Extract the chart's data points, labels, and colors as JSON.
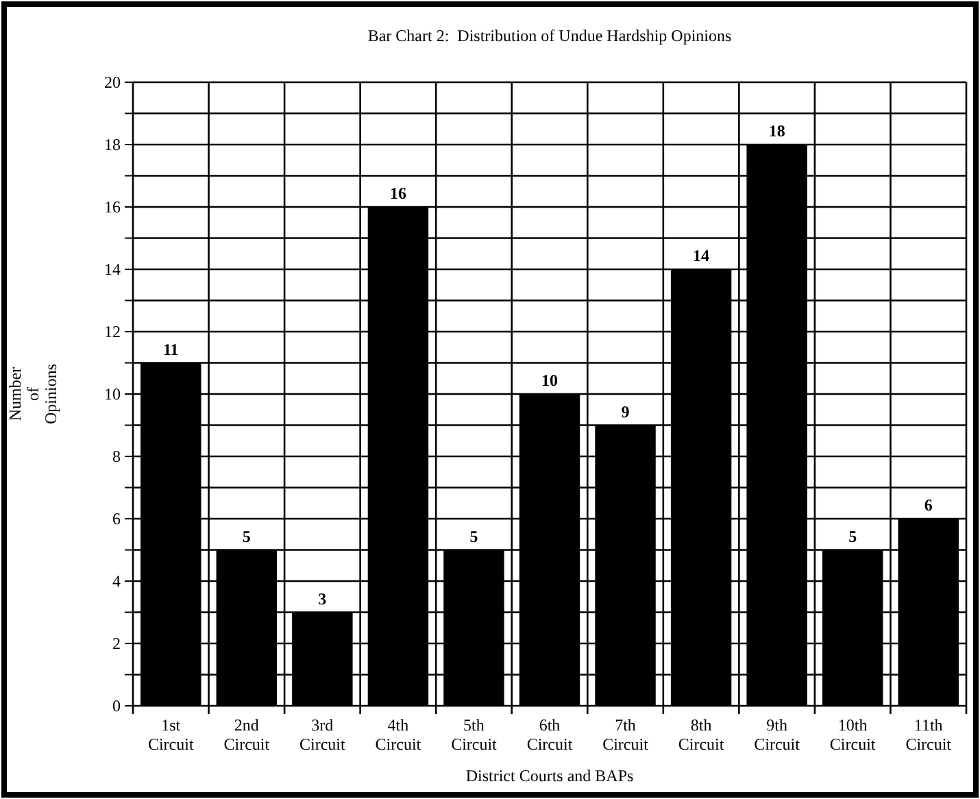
{
  "chart_data": {
    "type": "bar",
    "title": "Bar Chart 2:  Distribution of Undue Hardship Opinions",
    "xlabel": "District Courts and BAPs",
    "ylabel": "Number of Opinions",
    "categories": [
      "1st Circuit",
      "2nd Circuit",
      "3rd Circuit",
      "4th Circuit",
      "5th Circuit",
      "6th Circuit",
      "7th Circuit",
      "8th Circuit",
      "9th Circuit",
      "10th Circuit",
      "11th Circuit"
    ],
    "values": [
      11,
      5,
      3,
      16,
      5,
      10,
      9,
      14,
      18,
      5,
      6
    ],
    "color": "#000000",
    "data_labels": true,
    "ylim": [
      0,
      20
    ],
    "yticks": [
      0,
      {
        "value": 1,
        "label": null
      },
      2,
      {
        "value": 3,
        "label": null
      },
      4,
      {
        "value": 5,
        "label": null
      },
      6,
      {
        "value": 7,
        "label": null
      },
      8,
      {
        "value": 9,
        "label": null
      },
      10,
      {
        "value": 11,
        "label": null
      },
      12,
      {
        "value": 13,
        "label": null
      },
      14,
      {
        "value": 15,
        "label": null
      },
      16,
      {
        "value": 17,
        "label": null
      },
      18,
      {
        "value": 19,
        "label": null
      },
      20
    ],
    "grid": true
  }
}
